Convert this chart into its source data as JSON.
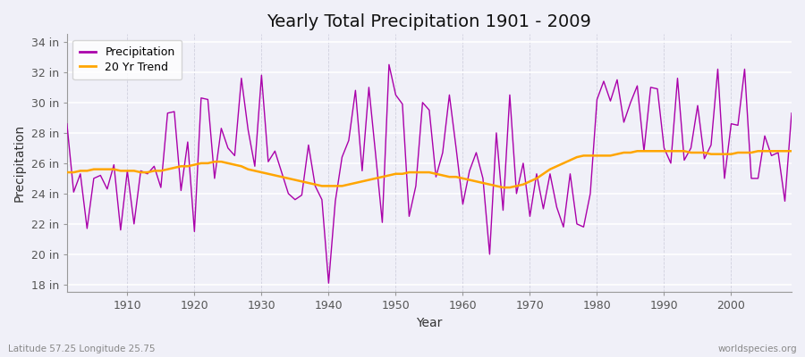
{
  "title": "Yearly Total Precipitation 1901 - 2009",
  "xlabel": "Year",
  "ylabel": "Precipitation",
  "subtitle_left": "Latitude 57.25 Longitude 25.75",
  "subtitle_right": "worldspecies.org",
  "legend_labels": [
    "Precipitation",
    "20 Yr Trend"
  ],
  "precip_color": "#AA00AA",
  "trend_color": "#FFA500",
  "bg_color": "#F0F0F8",
  "ylim": [
    17.5,
    34.5
  ],
  "yticks": [
    18,
    20,
    22,
    24,
    26,
    28,
    30,
    32,
    34
  ],
  "ytick_labels": [
    "18 in",
    "20 in",
    "22 in",
    "24 in",
    "26 in",
    "28 in",
    "30 in",
    "32 in",
    "34 in"
  ],
  "years": [
    1901,
    1902,
    1903,
    1904,
    1905,
    1906,
    1907,
    1908,
    1909,
    1910,
    1911,
    1912,
    1913,
    1914,
    1915,
    1916,
    1917,
    1918,
    1919,
    1920,
    1921,
    1922,
    1923,
    1924,
    1925,
    1926,
    1927,
    1928,
    1929,
    1930,
    1931,
    1932,
    1933,
    1934,
    1935,
    1936,
    1937,
    1938,
    1939,
    1940,
    1941,
    1942,
    1943,
    1944,
    1945,
    1946,
    1947,
    1948,
    1949,
    1950,
    1951,
    1952,
    1953,
    1954,
    1955,
    1956,
    1957,
    1958,
    1959,
    1960,
    1961,
    1962,
    1963,
    1964,
    1965,
    1966,
    1967,
    1968,
    1969,
    1970,
    1971,
    1972,
    1973,
    1974,
    1975,
    1976,
    1977,
    1978,
    1979,
    1980,
    1981,
    1982,
    1983,
    1984,
    1985,
    1986,
    1987,
    1988,
    1989,
    1990,
    1991,
    1992,
    1993,
    1994,
    1995,
    1996,
    1997,
    1998,
    1999,
    2000,
    2001,
    2002,
    2003,
    2004,
    2005,
    2006,
    2007,
    2008,
    2009
  ],
  "precipitation": [
    28.6,
    24.1,
    25.3,
    21.7,
    25.0,
    25.2,
    24.3,
    25.9,
    21.6,
    25.5,
    22.0,
    25.5,
    25.3,
    25.8,
    24.4,
    29.3,
    29.4,
    24.2,
    27.4,
    21.5,
    30.3,
    30.2,
    25.0,
    28.3,
    27.0,
    26.5,
    31.6,
    28.2,
    25.8,
    31.8,
    26.1,
    26.8,
    25.4,
    24.0,
    23.6,
    23.9,
    27.2,
    24.5,
    23.6,
    18.1,
    23.5,
    26.4,
    27.5,
    30.8,
    25.5,
    31.0,
    26.6,
    22.1,
    32.5,
    30.5,
    29.9,
    22.5,
    24.5,
    30.0,
    29.5,
    25.1,
    26.7,
    30.5,
    27.0,
    23.3,
    25.5,
    26.7,
    25.0,
    20.0,
    28.0,
    22.9,
    30.5,
    24.0,
    26.0,
    22.5,
    25.3,
    23.0,
    25.3,
    23.1,
    21.8,
    25.3,
    22.0,
    21.8,
    24.0,
    30.2,
    31.4,
    30.1,
    31.5,
    28.7,
    30.0,
    31.1,
    26.8,
    31.0,
    30.9,
    27.0,
    26.0,
    31.6,
    26.2,
    27.0,
    29.8,
    26.3,
    27.2,
    32.2,
    25.0,
    28.6,
    28.5,
    32.2,
    25.0,
    25.0,
    27.8,
    26.5,
    26.7,
    23.5,
    29.3
  ],
  "trend": [
    25.4,
    25.4,
    25.5,
    25.5,
    25.6,
    25.6,
    25.6,
    25.6,
    25.5,
    25.5,
    25.5,
    25.4,
    25.4,
    25.5,
    25.5,
    25.6,
    25.7,
    25.8,
    25.8,
    25.9,
    26.0,
    26.0,
    26.1,
    26.1,
    26.0,
    25.9,
    25.8,
    25.6,
    25.5,
    25.4,
    25.3,
    25.2,
    25.1,
    25.0,
    24.9,
    24.8,
    24.7,
    24.6,
    24.5,
    24.5,
    24.5,
    24.5,
    24.6,
    24.7,
    24.8,
    24.9,
    25.0,
    25.1,
    25.2,
    25.3,
    25.3,
    25.4,
    25.4,
    25.4,
    25.4,
    25.3,
    25.2,
    25.1,
    25.1,
    25.0,
    24.9,
    24.8,
    24.7,
    24.6,
    24.5,
    24.4,
    24.4,
    24.5,
    24.6,
    24.8,
    25.0,
    25.3,
    25.6,
    25.8,
    26.0,
    26.2,
    26.4,
    26.5,
    26.5,
    26.5,
    26.5,
    26.5,
    26.6,
    26.7,
    26.7,
    26.8,
    26.8,
    26.8,
    26.8,
    26.8,
    26.8,
    26.8,
    26.8,
    26.7,
    26.7,
    26.7,
    26.6,
    26.6,
    26.6,
    26.6,
    26.7,
    26.7,
    26.7,
    26.8,
    26.8,
    26.8,
    26.8,
    26.8,
    26.8
  ],
  "xticks": [
    1910,
    1920,
    1930,
    1940,
    1950,
    1960,
    1970,
    1980,
    1990,
    2000
  ],
  "title_fontsize": 14,
  "axis_label_fontsize": 10,
  "tick_fontsize": 9,
  "legend_fontsize": 9
}
